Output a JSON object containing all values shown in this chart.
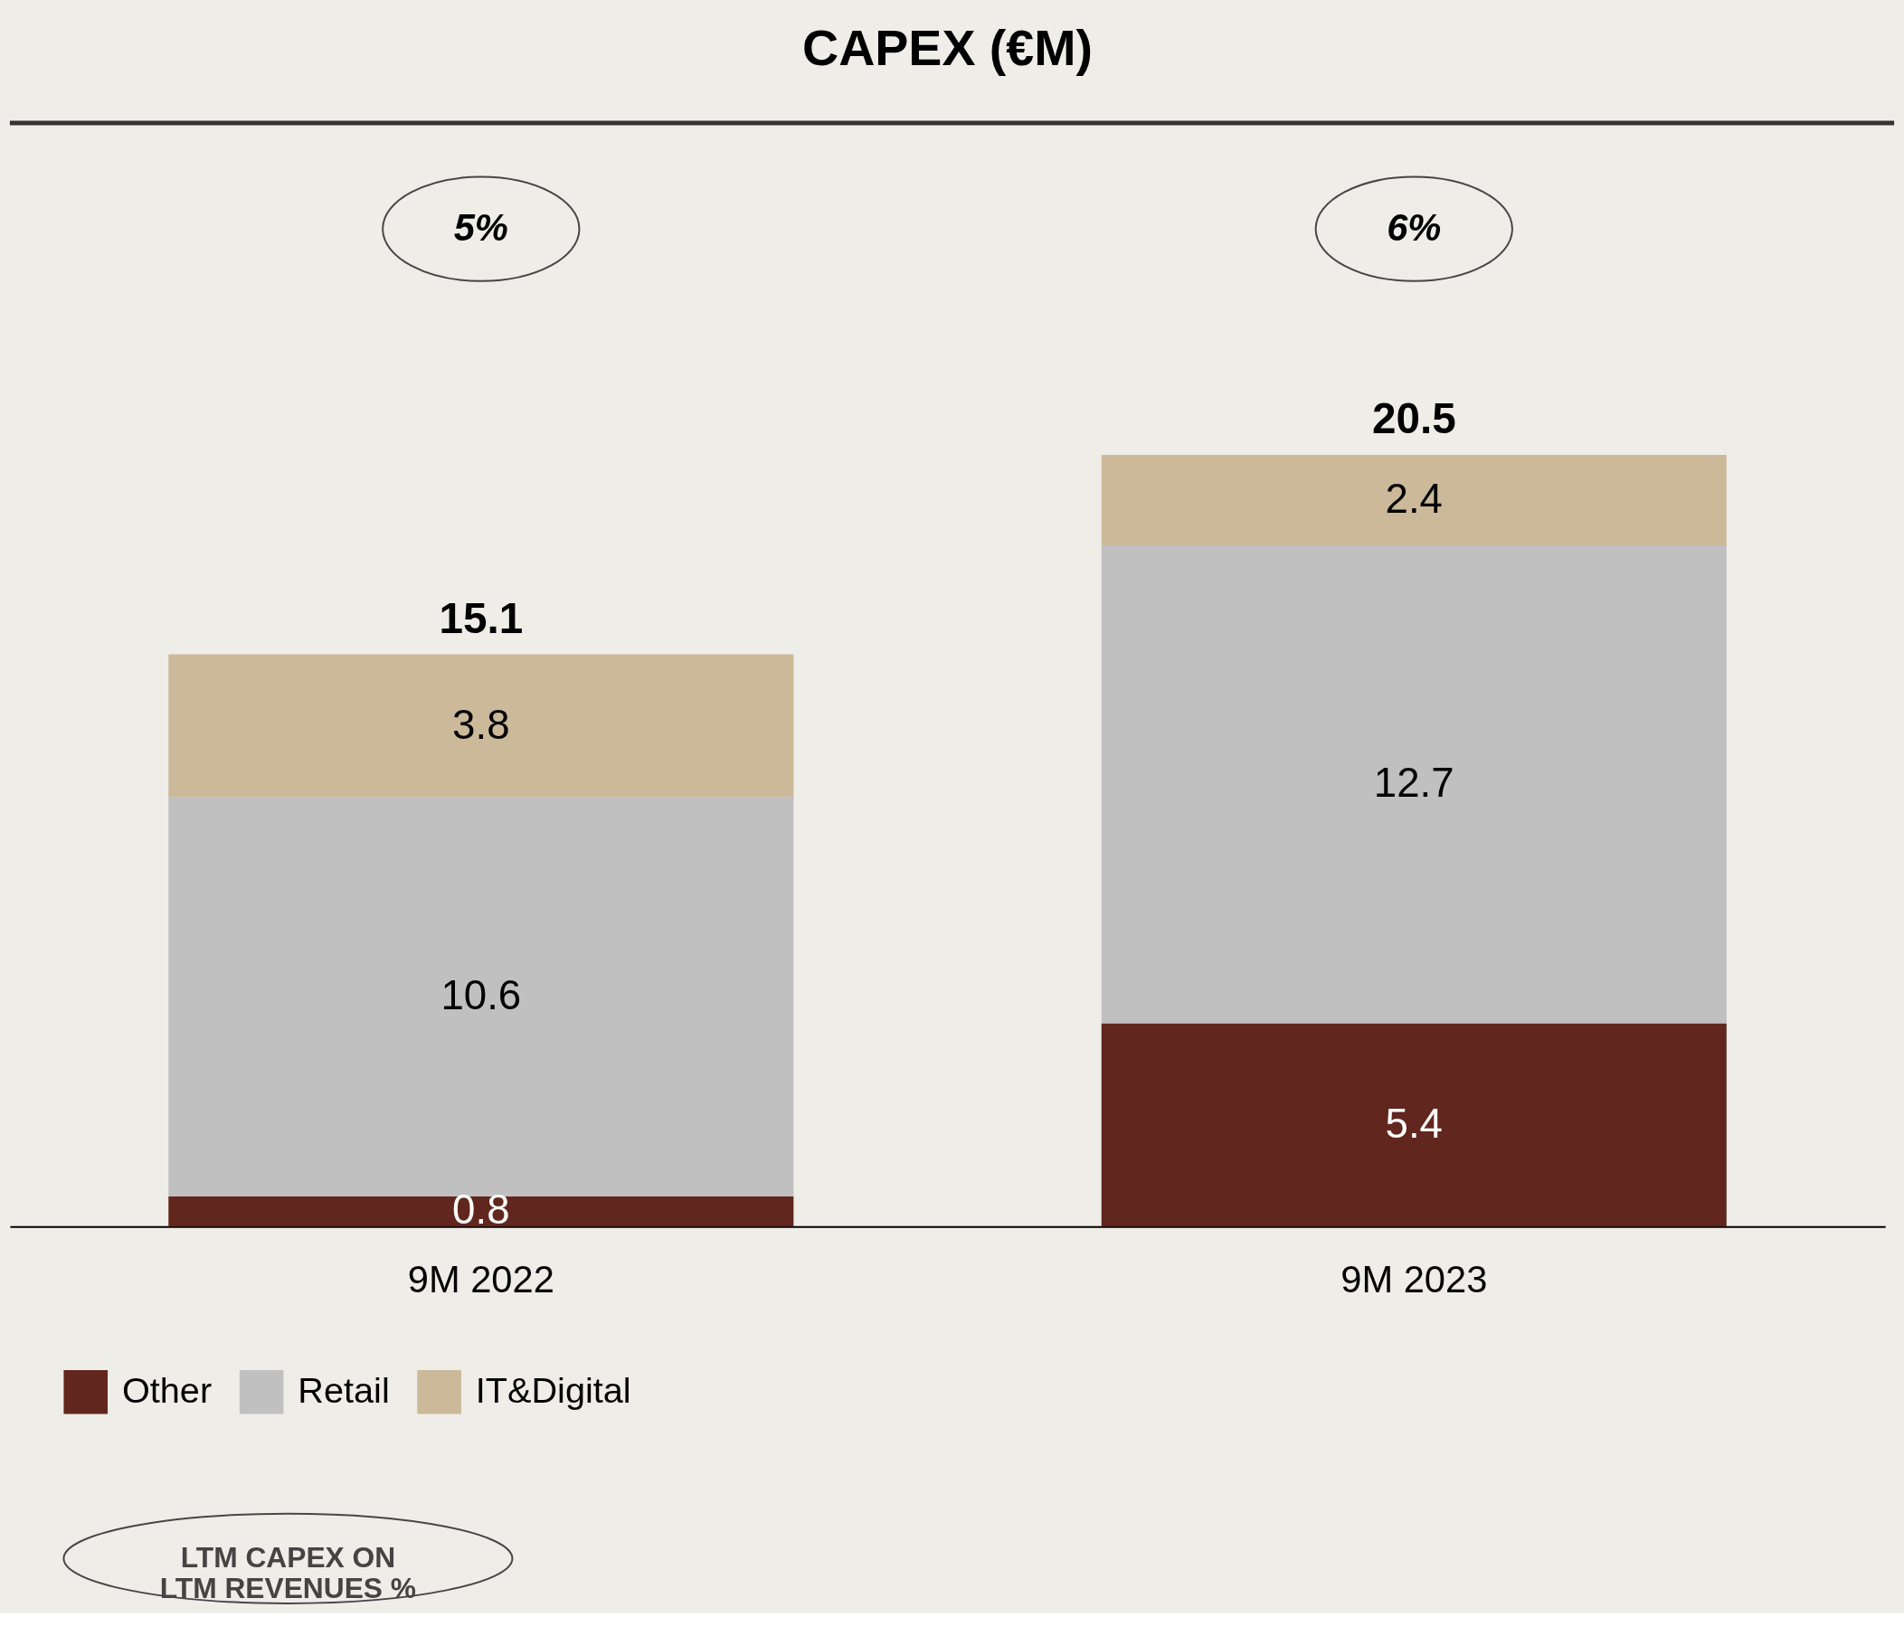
{
  "chart_data": {
    "type": "bar",
    "title": "CAPEX (€M)",
    "stacked": true,
    "data_labels": true,
    "legend": "bottom left",
    "categories": [
      "9M 2022",
      "9M 2023"
    ],
    "series": [
      {
        "name": "Other",
        "color": "#61261d",
        "values": [
          0.8,
          5.4
        ]
      },
      {
        "name": "Retail",
        "color": "#c0c0c0",
        "values": [
          10.6,
          12.7
        ]
      },
      {
        "name": "IT&Digital",
        "color": "#cbb99a",
        "values": [
          3.8,
          2.4
        ]
      }
    ],
    "totals": [
      "15.1",
      "20.5"
    ],
    "annotations": [
      "5%",
      "6%",
      "LTM CAPEX ON LTM REVENUES %"
    ]
  }
}
